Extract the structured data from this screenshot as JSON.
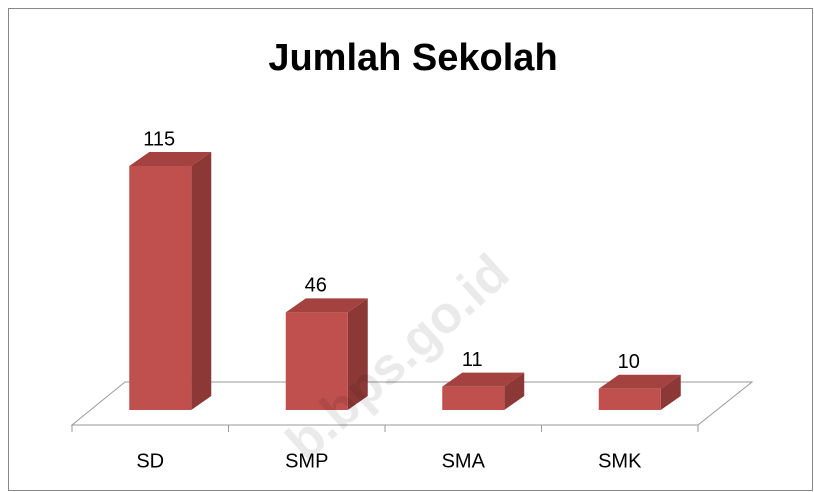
{
  "chart_data": {
    "type": "bar3d",
    "title": "Jumlah Sekolah",
    "categories": [
      "SD",
      "SMP",
      "SMA",
      "SMK"
    ],
    "values": [
      115,
      46,
      11,
      10
    ],
    "color": "#c0504d",
    "watermark": "b.bps.go.id"
  }
}
